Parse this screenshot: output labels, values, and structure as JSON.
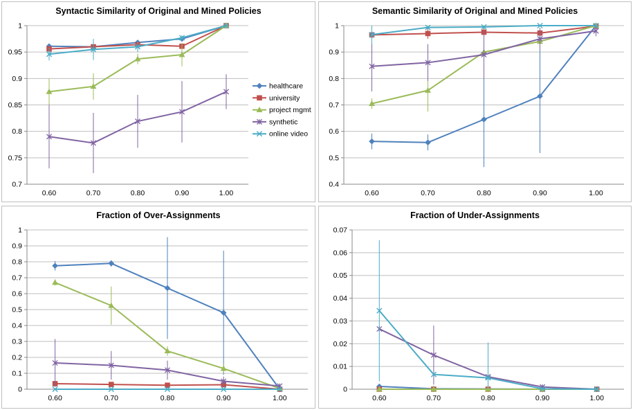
{
  "colors": {
    "healthcare": "#4f81bd",
    "university": "#c0504d",
    "project mgmt": "#9bbb59",
    "synthetic": "#8064a2",
    "online video": "#4bacc6"
  },
  "chart_data": [
    {
      "type": "line",
      "title": "Syntactic Similarity of Original and Mined Policies",
      "categories": [
        "0.60",
        "0.70",
        "0.80",
        "0.90",
        "1.00"
      ],
      "ylim": [
        0.7,
        1.0
      ],
      "yticks": [
        "0.7",
        "0.75",
        "0.8",
        "0.85",
        "0.9",
        "0.95",
        "1"
      ],
      "grid": true,
      "legend": "right",
      "series": [
        {
          "name": "healthcare",
          "values": [
            0.961,
            0.96,
            0.968,
            0.975,
            1.0
          ]
        },
        {
          "name": "university",
          "values": [
            0.956,
            0.96,
            0.964,
            0.961,
            1.0
          ]
        },
        {
          "name": "project mgmt",
          "values": [
            0.875,
            0.885,
            0.937,
            0.945,
            1.0
          ],
          "err": [
            0.025,
            0.025,
            0.01,
            0.022,
            0.003
          ]
        },
        {
          "name": "synthetic",
          "values": [
            0.79,
            0.778,
            0.819,
            0.837,
            0.875
          ],
          "err": [
            0.06,
            0.057,
            0.05,
            0.058,
            0.033
          ]
        },
        {
          "name": "online video",
          "values": [
            0.946,
            0.955,
            0.96,
            0.977,
            1.0
          ],
          "err": [
            0.012,
            0.02,
            0.01,
            0.005,
            0.002
          ]
        }
      ]
    },
    {
      "type": "line",
      "title": "Semantic Similarity of Original and Mined Policies",
      "categories": [
        "0.60",
        "0.70",
        "0.80",
        "0.90",
        "1.00"
      ],
      "ylim": [
        0.4,
        1.0
      ],
      "yticks": [
        "0.4",
        "0.5",
        "0.6",
        "0.7",
        "0.8",
        "0.9",
        "1"
      ],
      "grid": true,
      "legend": "none",
      "series": [
        {
          "name": "healthcare",
          "values": [
            0.562,
            0.558,
            0.645,
            0.733,
            1.0
          ],
          "err": [
            0.03,
            0.03,
            0.18,
            0.215,
            0.005
          ]
        },
        {
          "name": "university",
          "values": [
            0.965,
            0.97,
            0.975,
            0.972,
            0.998
          ],
          "err": [
            0.03,
            0.02,
            0.02,
            0.02,
            0.004
          ]
        },
        {
          "name": "project mgmt",
          "values": [
            0.705,
            0.755,
            0.9,
            0.94,
            1.0
          ],
          "err": [
            0.02,
            0.08,
            0.03,
            0.03,
            0.003
          ]
        },
        {
          "name": "synthetic",
          "values": [
            0.846,
            0.86,
            0.89,
            0.95,
            0.98
          ],
          "err": [
            0.095,
            0.07,
            0.09,
            0.04,
            0.02
          ]
        },
        {
          "name": "online video",
          "values": [
            0.966,
            0.993,
            0.995,
            1.0,
            1.0
          ],
          "err": [
            0.035,
            0.005,
            0.005,
            0.0,
            0.0
          ]
        }
      ]
    },
    {
      "type": "line",
      "title": "Fraction of Over-Assignments",
      "categories": [
        "0.60",
        "0.70",
        "0.80",
        "0.90",
        "1.00"
      ],
      "ylim": [
        0,
        1.0
      ],
      "yticks": [
        "0",
        "0.1",
        "0.2",
        "0.3",
        "0.4",
        "0.5",
        "0.6",
        "0.7",
        "0.8",
        "0.9",
        "1"
      ],
      "grid": true,
      "legend": "none",
      "series": [
        {
          "name": "healthcare",
          "values": [
            0.775,
            0.79,
            0.635,
            0.48,
            0.0
          ],
          "err": [
            0.03,
            0.02,
            0.32,
            0.39,
            0.02
          ]
        },
        {
          "name": "university",
          "values": [
            0.035,
            0.03,
            0.025,
            0.028,
            0.0
          ]
        },
        {
          "name": "project mgmt",
          "values": [
            0.67,
            0.525,
            0.24,
            0.13,
            0.005
          ],
          "err": [
            0.02,
            0.12,
            0.03,
            0.03,
            0.005
          ]
        },
        {
          "name": "synthetic",
          "values": [
            0.165,
            0.15,
            0.12,
            0.05,
            0.02
          ],
          "err": [
            0.15,
            0.09,
            0.06,
            0.03,
            0.01
          ]
        },
        {
          "name": "online video",
          "values": [
            0.0,
            0.0,
            0.0,
            0.0,
            0.0
          ]
        }
      ]
    },
    {
      "type": "line",
      "title": "Fraction of Under-Assignments",
      "categories": [
        "0.60",
        "0.70",
        "0.80",
        "0.90",
        "1.00"
      ],
      "ylim": [
        0,
        0.07
      ],
      "yticks": [
        "0",
        "0.01",
        "0.02",
        "0.03",
        "0.04",
        "0.05",
        "0.06",
        "0.07"
      ],
      "grid": true,
      "legend": "none",
      "series": [
        {
          "name": "healthcare",
          "values": [
            0.0012,
            0.0002,
            0.0001,
            0.0,
            0.0
          ]
        },
        {
          "name": "university",
          "values": [
            0.0,
            0.0,
            0.0,
            0.0,
            0.0
          ]
        },
        {
          "name": "project mgmt",
          "values": [
            0.0,
            0.0,
            0.0,
            0.0,
            0.0
          ]
        },
        {
          "name": "synthetic",
          "values": [
            0.0265,
            0.015,
            0.0055,
            0.001,
            0.0
          ],
          "err": [
            0.0,
            0.013,
            0.0,
            0.001,
            0.0
          ]
        },
        {
          "name": "online video",
          "values": [
            0.0345,
            0.0065,
            0.005,
            0.0002,
            0.0
          ],
          "err": [
            0.031,
            0.0,
            0.0155,
            0.0,
            0.0
          ]
        }
      ]
    }
  ]
}
